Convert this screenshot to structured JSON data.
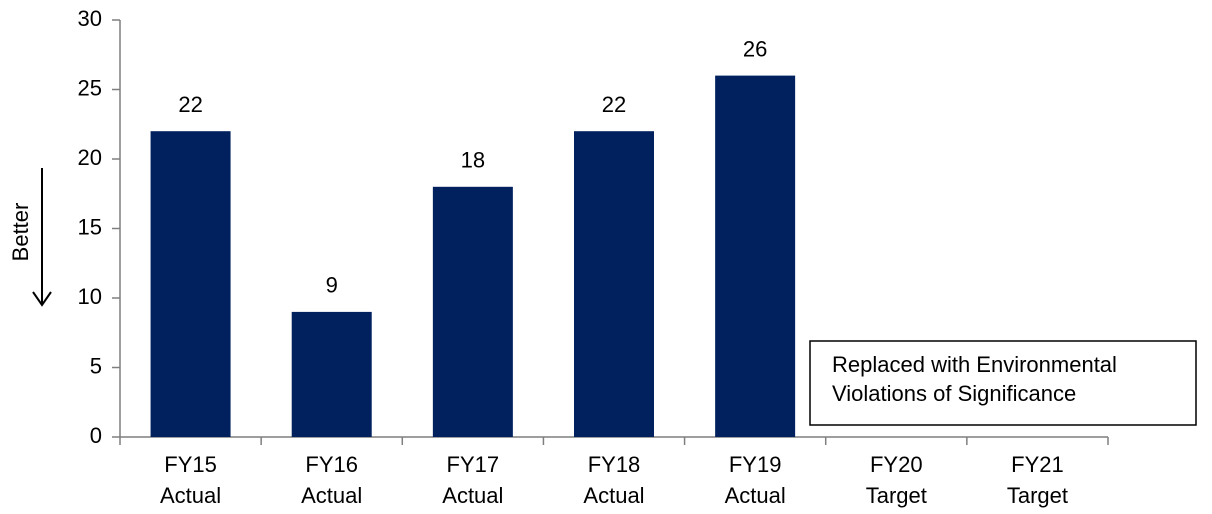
{
  "chart_data": {
    "type": "bar",
    "y_label": "Better",
    "categories": [
      [
        "FY15",
        "Actual"
      ],
      [
        "FY16",
        "Actual"
      ],
      [
        "FY17",
        "Actual"
      ],
      [
        "FY18",
        "Actual"
      ],
      [
        "FY19",
        "Actual"
      ],
      [
        "FY20",
        "Target"
      ],
      [
        "FY21",
        "Target"
      ]
    ],
    "values": [
      22,
      9,
      18,
      22,
      26,
      null,
      null
    ],
    "color": "#00215e",
    "ylim": [
      0,
      30
    ],
    "yticks": [
      0,
      5,
      10,
      15,
      20,
      25,
      30
    ],
    "annotation": [
      "Replaced with Environmental",
      "Violations of Significance"
    ]
  }
}
